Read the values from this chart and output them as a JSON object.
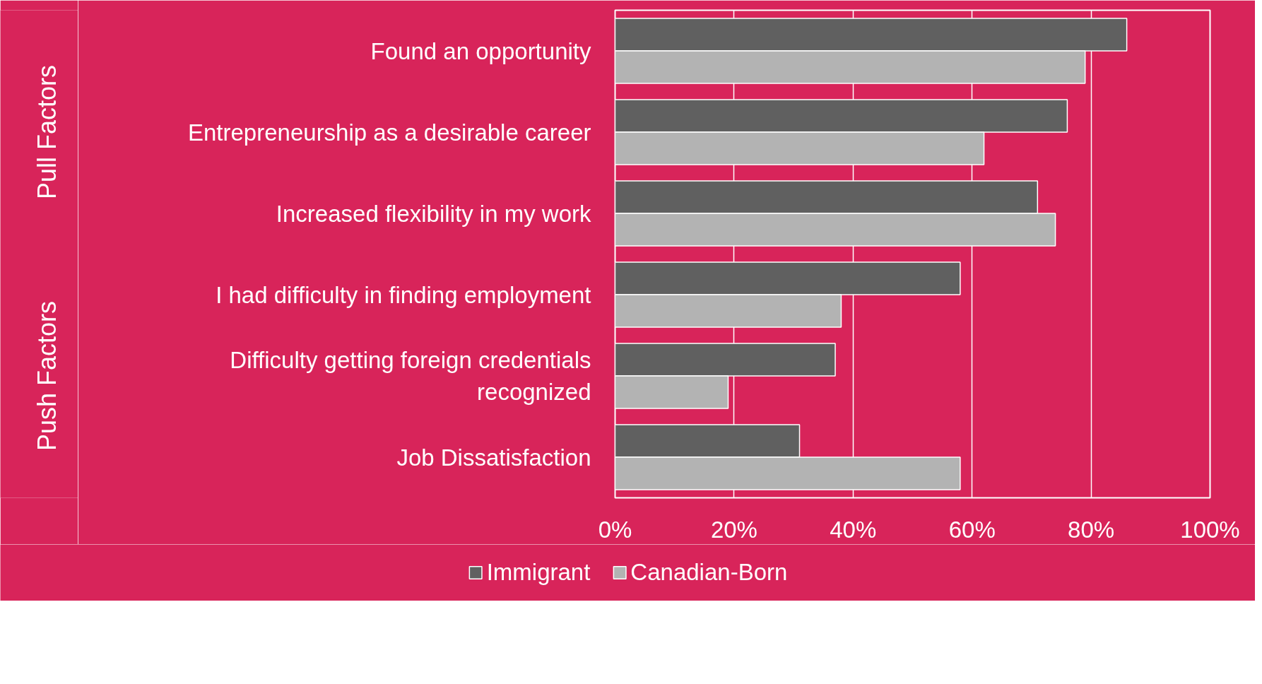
{
  "chart_data": {
    "type": "bar",
    "orientation": "horizontal",
    "categories": [
      "Found an opportunity",
      "Entrepreneurship as a desirable career",
      "Increased flexibility in my work",
      "I had difficulty in finding employment",
      "Difficulty getting foreign credentials recognized",
      "Job Dissatisfaction"
    ],
    "series": [
      {
        "name": "Immigrant",
        "color": "#606060",
        "values": [
          86,
          76,
          71,
          58,
          37,
          31
        ]
      },
      {
        "name": "Canadian-Born",
        "color": "#b3b3b3",
        "values": [
          79,
          62,
          74,
          38,
          19,
          58
        ]
      }
    ],
    "xlim": [
      0,
      100
    ],
    "xticks": [
      {
        "value": 0,
        "label": "0%"
      },
      {
        "value": 20,
        "label": "20%"
      },
      {
        "value": 40,
        "label": "40%"
      },
      {
        "value": 60,
        "label": "60%"
      },
      {
        "value": 80,
        "label": "80%"
      },
      {
        "value": 100,
        "label": "100%"
      }
    ],
    "annotations": [
      "Pull Factors",
      "Push Factors"
    ],
    "grid": "x",
    "legend": "bottom"
  }
}
